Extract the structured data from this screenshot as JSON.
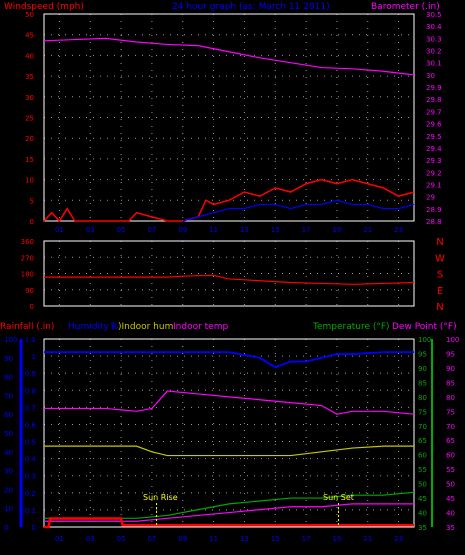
{
  "colors": {
    "wind": "#ff0000",
    "gust": "#0000ff",
    "baro": "#ff00ff",
    "title": "#0000ff",
    "dir": "#ff0000",
    "humidity": "#0000ff",
    "indoor_hum": "#c8c800",
    "indoor_temp": "#ff00ff",
    "temperature": "#00aa00",
    "dewpoint": "#ff00ff",
    "rain": "#ff0000",
    "rainaxis": "#0000ff",
    "sun": "#ffff00",
    "grid": "#ffffff"
  },
  "chart_data": [
    {
      "type": "line",
      "title": "24 hour graph (as: March 11 2011)",
      "left_axis_label": "Windspeed (mph)",
      "right_axis_label": "Barometer (.in)",
      "x_ticks": [
        "01",
        "03",
        "05",
        "07",
        "09",
        "11",
        "13",
        "15",
        "17",
        "19",
        "21",
        "23"
      ],
      "y_left_ticks": [
        "0",
        "5",
        "10",
        "15",
        "20",
        "25",
        "30",
        "35",
        "40",
        "45",
        "50"
      ],
      "y_left_range": [
        0,
        50
      ],
      "y_right_ticks": [
        "28.8",
        "28.9",
        "29",
        "29.1",
        "29.2",
        "29.3",
        "29.4",
        "29.5",
        "29.6",
        "29.7",
        "29.8",
        "29.9",
        "30",
        "30.1",
        "30.2",
        "30.3",
        "30.4",
        "30.5"
      ],
      "y_right_range": [
        28.8,
        30.5
      ],
      "series": [
        {
          "name": "Windspeed (mph)",
          "x": [
            0,
            0.5,
            1,
            1.5,
            2,
            4,
            5.5,
            6,
            8,
            9,
            10,
            10.5,
            11,
            12,
            13,
            14,
            15,
            16,
            17,
            18,
            19,
            20,
            21,
            22,
            23,
            24
          ],
          "y": [
            0,
            2,
            0,
            3,
            0,
            0,
            0,
            2,
            0,
            0,
            1,
            5,
            4,
            5,
            7,
            6,
            8,
            7,
            9,
            10,
            9,
            10,
            9,
            8,
            6,
            7
          ]
        },
        {
          "name": "Gust",
          "x": [
            9,
            10,
            11,
            12,
            13,
            14,
            15,
            16,
            17,
            18,
            19,
            20,
            21,
            22,
            23,
            24
          ],
          "y": [
            0,
            1,
            2,
            3,
            3,
            4,
            4,
            3,
            4,
            4,
            5,
            4,
            4,
            3,
            3,
            4
          ]
        },
        {
          "name": "Barometer (.in)",
          "x": [
            0,
            2,
            4,
            6,
            8,
            10,
            12,
            14,
            16,
            18,
            20,
            22,
            24
          ],
          "y": [
            30.28,
            30.29,
            30.3,
            30.27,
            30.25,
            30.24,
            30.19,
            30.14,
            30.1,
            30.06,
            30.05,
            30.03,
            30.0
          ]
        }
      ]
    },
    {
      "type": "line",
      "y_ticks": [
        "360",
        "270",
        "180",
        "90",
        "0"
      ],
      "y_range": [
        0,
        360
      ],
      "compass": [
        "N",
        "W",
        "S",
        "E",
        "N"
      ],
      "series": [
        {
          "name": "Wind direction",
          "x": [
            0,
            4,
            8,
            9,
            10,
            11,
            12,
            14,
            16,
            18,
            20,
            22,
            24
          ],
          "y": [
            160,
            160,
            160,
            165,
            168,
            170,
            150,
            140,
            130,
            125,
            120,
            125,
            130
          ]
        }
      ]
    },
    {
      "type": "line",
      "labels": {
        "rain": "Rainfall (.in)",
        "humidity": "Humidity (",
        "hum_pct": "%",
        "indoor_hum": ")Indoor hum",
        "indoor_temp": "Indoor temp",
        "temperature": "Temperature (°F)",
        "dewpoint": "Dew Point (°F)"
      },
      "rain_ticks": [
        "0",
        "0.1",
        "0.2",
        "0.3",
        "0.4",
        "0.5",
        "0.6",
        "0.7",
        "0.8",
        "0.9",
        "1",
        "1.1"
      ],
      "rain_range": [
        0,
        1.1
      ],
      "pct_ticks": [
        "0",
        "10",
        "20",
        "30",
        "40",
        "50",
        "60",
        "70",
        "80",
        "90",
        "100"
      ],
      "pct_range": [
        0,
        100
      ],
      "temp_ticks": [
        "35",
        "40",
        "45",
        "50",
        "55",
        "60",
        "65",
        "70",
        "75",
        "80",
        "85",
        "90",
        "95",
        "100"
      ],
      "temp_range": [
        35,
        100
      ],
      "sun": {
        "rise_label": "Sun Rise",
        "rise_hour": 7.3,
        "set_label": "Sun Set",
        "set_hour": 19.1
      },
      "series": [
        {
          "name": "Humidity",
          "axis": "pct",
          "x": [
            0,
            4,
            8,
            12,
            14,
            15,
            16,
            17,
            18,
            19,
            20,
            22,
            24
          ],
          "y": [
            93,
            93,
            93,
            93,
            90,
            85,
            88,
            88,
            90,
            92,
            92,
            93,
            93
          ]
        },
        {
          "name": "Indoor temp",
          "axis": "temp",
          "x": [
            0,
            4,
            6,
            7,
            8,
            10,
            12,
            14,
            16,
            18,
            19,
            20,
            22,
            24
          ],
          "y": [
            76,
            76,
            75,
            76,
            82,
            81,
            80,
            79,
            78,
            77,
            74,
            75,
            75,
            74
          ]
        },
        {
          "name": "Indoor hum",
          "axis": "pct",
          "x": [
            0,
            4,
            6,
            7,
            8,
            12,
            14,
            16,
            18,
            20,
            22,
            24
          ],
          "y": [
            43,
            43,
            43,
            40,
            38,
            38,
            38,
            38,
            40,
            42,
            43,
            43
          ]
        },
        {
          "name": "Temperature",
          "axis": "temp",
          "x": [
            0,
            4,
            6,
            8,
            10,
            12,
            14,
            16,
            18,
            20,
            22,
            24
          ],
          "y": [
            38,
            38,
            38,
            39,
            41,
            43,
            44,
            45,
            45,
            46,
            46,
            47
          ]
        },
        {
          "name": "Dew Point",
          "axis": "temp",
          "x": [
            0,
            4,
            6,
            8,
            10,
            12,
            14,
            16,
            18,
            20,
            22,
            24
          ],
          "y": [
            37,
            37,
            37,
            38,
            39,
            40,
            41,
            42,
            42,
            43,
            43,
            43
          ]
        },
        {
          "name": "Rainfall",
          "axis": "rain",
          "x": [
            0,
            0.3,
            0.4,
            5,
            5.1,
            24
          ],
          "y": [
            0,
            0,
            0.05,
            0.05,
            0.01,
            0.01
          ]
        }
      ]
    }
  ]
}
